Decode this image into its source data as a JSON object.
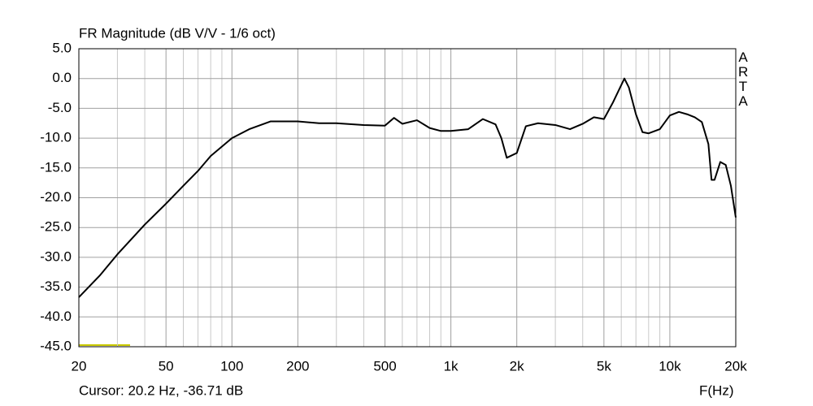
{
  "chart_data": {
    "type": "line",
    "title": "FR Magnitude (dB V/V - 1/6 oct)",
    "xlabel": "F(Hz)",
    "cursor": "Cursor: 20.2 Hz, -36.71 dB",
    "watermark": "ARTA",
    "log_x": true,
    "grid": true,
    "color": "#000000",
    "x": [
      20,
      25,
      30,
      40,
      50,
      60,
      70,
      80,
      100,
      120,
      150,
      200,
      250,
      300,
      400,
      500,
      550,
      600,
      700,
      800,
      900,
      1000,
      1200,
      1400,
      1600,
      1700,
      1800,
      2000,
      2200,
      2500,
      3000,
      3500,
      4000,
      4500,
      5000,
      5500,
      6200,
      6500,
      7000,
      7500,
      8000,
      9000,
      10000,
      11000,
      12000,
      13000,
      14000,
      15000,
      15500,
      16000,
      17000,
      18000,
      19000,
      20000
    ],
    "values": [
      -36.7,
      -33,
      -29.5,
      -24.5,
      -21,
      -18,
      -15.5,
      -13,
      -10,
      -8.5,
      -7.2,
      -7.2,
      -7.5,
      -7.5,
      -7.8,
      -7.9,
      -6.6,
      -7.6,
      -7.0,
      -8.3,
      -8.8,
      -8.8,
      -8.5,
      -6.8,
      -7.7,
      -10,
      -13.3,
      -12.5,
      -8,
      -7.5,
      -7.8,
      -8.5,
      -7.6,
      -6.5,
      -6.8,
      -4,
      0,
      -1.5,
      -6,
      -9,
      -9.2,
      -8.5,
      -6.2,
      -5.6,
      -6,
      -6.5,
      -7.3,
      -11,
      -17,
      -17,
      -14,
      -14.5,
      -18,
      -23.3
    ],
    "xlim": [
      20,
      20000
    ],
    "ylim": [
      -45,
      5
    ],
    "xticks": [
      20,
      50,
      100,
      200,
      500,
      {
        "value": 1000,
        "label": "1k"
      },
      {
        "value": 2000,
        "label": "2k"
      },
      {
        "value": 5000,
        "label": "5k"
      },
      {
        "value": 10000,
        "label": "10k"
      },
      {
        "value": 20000,
        "label": "20k"
      }
    ],
    "xgrid_minor": [
      30,
      40,
      60,
      70,
      80,
      90,
      300,
      400,
      600,
      700,
      800,
      900,
      3000,
      4000,
      6000,
      7000,
      8000,
      9000
    ],
    "yticks": [
      {
        "value": 5,
        "label": "5.0"
      },
      {
        "value": 0,
        "label": "0.0"
      },
      {
        "value": -5,
        "label": "-5.0"
      },
      {
        "value": -10,
        "label": "-10.0"
      },
      {
        "value": -15,
        "label": "-15.0"
      },
      {
        "value": -20,
        "label": "-20.0"
      },
      {
        "value": -25,
        "label": "-25.0"
      },
      {
        "value": -30,
        "label": "-30.0"
      },
      {
        "value": -35,
        "label": "-35.0"
      },
      {
        "value": -40,
        "label": "-40.0"
      },
      {
        "value": -45,
        "label": "-45.0"
      }
    ]
  }
}
